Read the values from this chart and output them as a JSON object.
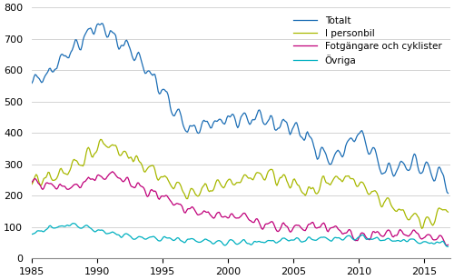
{
  "xlim": [
    1985,
    2017
  ],
  "ylim": [
    0,
    800
  ],
  "yticks": [
    0,
    100,
    200,
    300,
    400,
    500,
    600,
    700,
    800
  ],
  "xticks": [
    1985,
    1990,
    1995,
    2000,
    2005,
    2010,
    2015
  ],
  "colors": {
    "Totalt": "#1c6eb5",
    "I personbil": "#a8b800",
    "Fotgangare och cyklister": "#c0007a",
    "Ovriga": "#00b0c0"
  },
  "legend_labels": [
    "Totalt",
    "I personbil",
    "Fotgängare och cyklister",
    "Övriga"
  ],
  "background_color": "#ffffff",
  "grid_color": "#cccccc",
  "seed": 42,
  "totalt_knots": [
    [
      1985,
      548
    ],
    [
      1990,
      745
    ],
    [
      1993,
      650
    ],
    [
      1997,
      410
    ],
    [
      2001,
      450
    ],
    [
      2005,
      420
    ],
    [
      2008,
      310
    ],
    [
      2010,
      400
    ],
    [
      2012,
      270
    ],
    [
      2014,
      310
    ],
    [
      2016.92,
      240
    ]
  ],
  "personbil_knots": [
    [
      1985,
      240
    ],
    [
      1988,
      280
    ],
    [
      1990.5,
      375
    ],
    [
      1993,
      310
    ],
    [
      1997,
      210
    ],
    [
      2003,
      270
    ],
    [
      2006,
      215
    ],
    [
      2009,
      265
    ],
    [
      2013,
      155
    ],
    [
      2015,
      115
    ],
    [
      2016.92,
      160
    ]
  ],
  "fotg_knots": [
    [
      1985,
      238
    ],
    [
      1988,
      225
    ],
    [
      1991,
      270
    ],
    [
      1997,
      150
    ],
    [
      2001,
      130
    ],
    [
      2005,
      90
    ],
    [
      2007,
      105
    ],
    [
      2010,
      70
    ],
    [
      2013,
      80
    ],
    [
      2016.92,
      55
    ]
  ],
  "ovriga_knots": [
    [
      1985,
      80
    ],
    [
      1988,
      110
    ],
    [
      1992,
      70
    ],
    [
      2000,
      50
    ],
    [
      2010,
      65
    ],
    [
      2016.92,
      45
    ]
  ],
  "noise_params": {
    "Totalt": {
      "seas": 20,
      "rand": 15,
      "smooth": 3
    },
    "I personbil": {
      "seas": 15,
      "rand": 12,
      "smooth": 3
    },
    "Fotgangare": {
      "seas": 10,
      "rand": 10,
      "smooth": 3
    },
    "Ovriga": {
      "seas": 5,
      "rand": 5,
      "smooth": 3
    }
  }
}
